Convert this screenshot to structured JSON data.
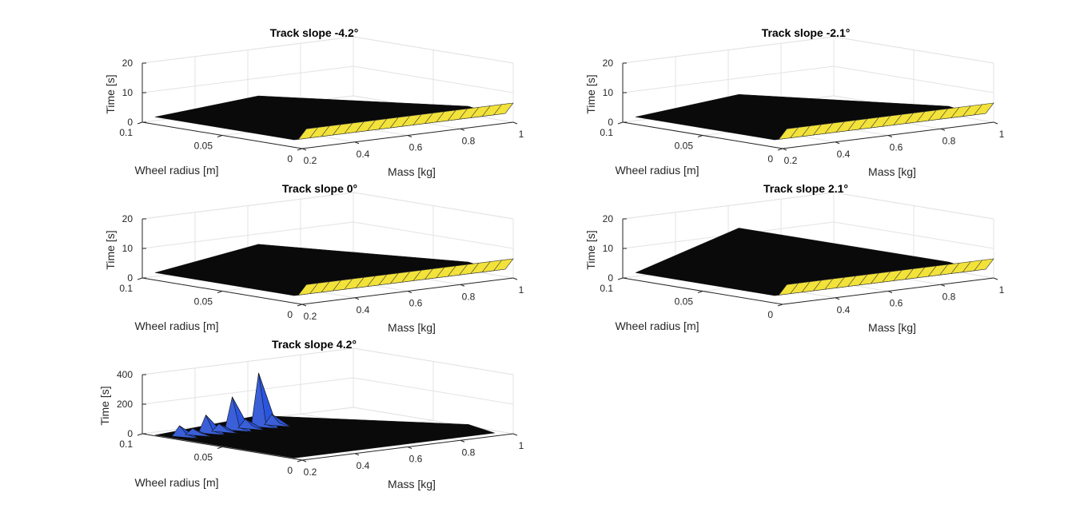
{
  "colors": {
    "surface_dark": "#0a0a0a",
    "surface_high": "#f2e23a",
    "spike_blue": "#2a55e0",
    "grid": "#e3e3e3",
    "axis": "#262626"
  },
  "chart_data": [
    {
      "type": "surface",
      "title": "Track slope -4.2°",
      "xlabel": "Mass [kg]",
      "ylabel": "Wheel radius [m]",
      "zlabel": "Time [s]",
      "xlim": [
        0.2,
        1
      ],
      "ylim": [
        0,
        0.1
      ],
      "zlim": [
        0,
        20
      ],
      "xticks": [
        "0.2",
        "0.4",
        "0.6",
        "0.8",
        "1"
      ],
      "yticks": [
        "0",
        "0.05",
        "0.1"
      ],
      "zticks": [
        "0",
        "10",
        "20"
      ],
      "grid": true,
      "surface_floor": 2.5,
      "edge_rise": 4.0,
      "edge_peak": 4.0,
      "spikes": []
    },
    {
      "type": "surface",
      "title": "Track slope -2.1°",
      "xlabel": "Mass [kg]",
      "ylabel": "Wheel radius [m]",
      "zlabel": "Time [s]",
      "xlim": [
        0.2,
        1
      ],
      "ylim": [
        0,
        0.1
      ],
      "zlim": [
        0,
        20
      ],
      "xticks": [
        "0.2",
        "0.4",
        "0.6",
        "0.8",
        "1"
      ],
      "yticks": [
        "0",
        "0.05",
        "0.1"
      ],
      "zticks": [
        "0",
        "10",
        "20"
      ],
      "grid": true,
      "surface_floor": 2.5,
      "edge_rise": 4.0,
      "edge_peak": 4.5,
      "spikes": []
    },
    {
      "type": "surface",
      "title": "Track slope 0°",
      "xlabel": "Mass [kg]",
      "ylabel": "Wheel radius [m]",
      "zlabel": "Time [s]",
      "xlim": [
        0.2,
        1
      ],
      "ylim": [
        0,
        0.1
      ],
      "zlim": [
        0,
        20
      ],
      "xticks": [
        "0.2",
        "0.4",
        "0.6",
        "0.8",
        "1"
      ],
      "yticks": [
        "0",
        "0.05",
        "0.1"
      ],
      "zticks": [
        "0",
        "10",
        "20"
      ],
      "grid": true,
      "surface_floor": 2.5,
      "edge_rise": 4.0,
      "edge_peak": 6.5,
      "spikes": []
    },
    {
      "type": "surface",
      "title": "Track slope 2.1°",
      "xlabel": "Mass [kg]",
      "ylabel": "Wheel radius [m]",
      "zlabel": "Time [s]",
      "xlim": [
        0.2,
        1
      ],
      "ylim": [
        0,
        0.1
      ],
      "zlim": [
        0,
        20
      ],
      "xticks": [
        "0.4",
        "0.6",
        "0.8",
        "1"
      ],
      "yticks": [
        "0",
        "0.05",
        "0.1"
      ],
      "zticks": [
        "0",
        "10",
        "20"
      ],
      "grid": true,
      "surface_floor": 2.5,
      "edge_rise": 4.0,
      "edge_peak": 12.0,
      "spikes": []
    },
    {
      "type": "surface",
      "title": "Track slope 4.2°",
      "xlabel": "Mass [kg]",
      "ylabel": "Wheel radius [m]",
      "zlabel": "Time [s]",
      "xlim": [
        0.2,
        1
      ],
      "ylim": [
        0,
        0.1
      ],
      "zlim": [
        0,
        400
      ],
      "xticks": [
        "0.2",
        "0.4",
        "0.6",
        "0.8",
        "1"
      ],
      "yticks": [
        "0",
        "0.05",
        "0.1"
      ],
      "zticks": [
        "0",
        "200",
        "400"
      ],
      "grid": true,
      "surface_floor": 5,
      "edge_rise": 0,
      "edge_peak": 25,
      "spikes": [
        {
          "mass": 0.55,
          "radius": 0.085,
          "time": 360
        },
        {
          "mass": 0.45,
          "radius": 0.085,
          "time": 220
        },
        {
          "mass": 0.35,
          "radius": 0.085,
          "time": 120
        },
        {
          "mass": 0.25,
          "radius": 0.085,
          "time": 70
        },
        {
          "mass": 0.6,
          "radius": 0.085,
          "time": 70
        },
        {
          "mass": 0.5,
          "radius": 0.085,
          "time": 60
        },
        {
          "mass": 0.4,
          "radius": 0.085,
          "time": 50
        },
        {
          "mass": 0.3,
          "radius": 0.085,
          "time": 40
        }
      ]
    }
  ]
}
